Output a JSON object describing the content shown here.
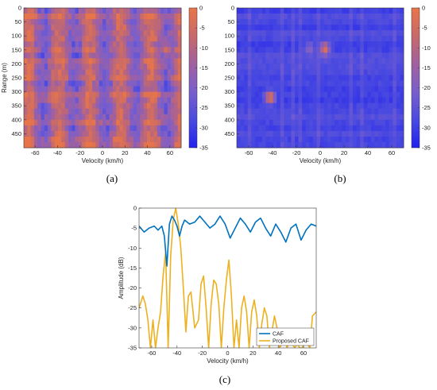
{
  "figure": {
    "captions": [
      "(a)",
      "(b)",
      "(c)"
    ]
  },
  "chart_data": [
    {
      "type": "heatmap",
      "panel": "(a)",
      "xlabel": "Velocity (km/h)",
      "ylabel": "Range (m)",
      "xlim": [
        -70,
        70
      ],
      "ylim": [
        0,
        500
      ],
      "y_reversed": true,
      "xticks": [
        -60,
        -40,
        -20,
        0,
        20,
        40,
        60
      ],
      "yticks": [
        0,
        50,
        100,
        150,
        200,
        250,
        300,
        350,
        400,
        450
      ],
      "colorbar": {
        "range": [
          -35,
          0
        ],
        "ticks": [
          0,
          -5,
          -10,
          -15,
          -20,
          -25,
          -30,
          -35
        ]
      },
      "colormap": [
        "#2222ee",
        "#4a4ae0",
        "#7a5fcc",
        "#a0609f",
        "#c86a6a",
        "#e8754a"
      ],
      "grid": false,
      "peaks": [
        {
          "velocity": -42,
          "range": 145,
          "value": -2
        },
        {
          "velocity": -45,
          "range": 320,
          "value": -3
        },
        {
          "velocity": -10,
          "range": 95,
          "value": -4
        },
        {
          "velocity": 18,
          "range": 250,
          "value": -3
        },
        {
          "velocity": 57,
          "range": 150,
          "value": -4
        }
      ]
    },
    {
      "type": "heatmap",
      "panel": "(b)",
      "xlabel": "Velocity (km/h)",
      "ylabel": "",
      "xlim": [
        -70,
        70
      ],
      "ylim": [
        0,
        500
      ],
      "y_reversed": true,
      "xticks": [
        -60,
        -40,
        -20,
        0,
        20,
        40,
        60
      ],
      "yticks": [
        0,
        50,
        100,
        150,
        200,
        250,
        300,
        350,
        400,
        450
      ],
      "colorbar": {
        "range": [
          -35,
          0
        ],
        "ticks": [
          0,
          -5,
          -10,
          -15,
          -20,
          -25,
          -30,
          -35
        ]
      },
      "colormap": [
        "#2222ee",
        "#4a4ae0",
        "#7a5fcc",
        "#a0609f",
        "#c86a6a",
        "#e8754a"
      ],
      "grid": false,
      "peaks": [
        {
          "velocity": -42,
          "range": 320,
          "value": 0
        },
        {
          "velocity": 4,
          "range": 145,
          "value": -2
        },
        {
          "velocity": -9,
          "range": 145,
          "value": -18
        }
      ]
    },
    {
      "type": "line",
      "panel": "(c)",
      "xlabel": "Velocity (km/h)",
      "ylabel": "Amplitude (dB)",
      "xlim": [
        -70,
        70
      ],
      "ylim": [
        -35,
        0
      ],
      "xticks": [
        -60,
        -40,
        -20,
        0,
        20,
        40,
        60
      ],
      "yticks": [
        0,
        -5,
        -10,
        -15,
        -20,
        -25,
        -30,
        -35
      ],
      "grid": false,
      "legend": "bottom-right",
      "series": [
        {
          "name": "CAF",
          "color": "#0072bd",
          "x": [
            -70,
            -66,
            -62,
            -58,
            -55,
            -52,
            -50,
            -48,
            -46,
            -44,
            -42,
            -40,
            -38,
            -36,
            -34,
            -30,
            -26,
            -22,
            -18,
            -14,
            -10,
            -6,
            -2,
            2,
            6,
            10,
            14,
            18,
            22,
            26,
            30,
            34,
            38,
            42,
            46,
            50,
            54,
            58,
            62,
            66,
            70
          ],
          "y": [
            -4.5,
            -6,
            -5,
            -4.5,
            -5.5,
            -4.5,
            -7,
            -14.5,
            -4,
            -2,
            -3,
            -4.5,
            -7,
            -4.5,
            -3,
            -4,
            -3.5,
            -2,
            -3.5,
            -5,
            -4,
            -2,
            -4,
            -7.5,
            -5,
            -2.5,
            -4,
            -6,
            -3.5,
            -2.5,
            -5,
            -7,
            -4,
            -6,
            -8.5,
            -5,
            -4,
            -8,
            -5.5,
            -4,
            -4.5
          ]
        },
        {
          "name": "Proposed CAF",
          "color": "#edb120",
          "x": [
            -70,
            -67,
            -65,
            -63,
            -61,
            -59,
            -57,
            -55,
            -53,
            -51,
            -49,
            -47,
            -45,
            -43,
            -41,
            -39,
            -37,
            -35,
            -33,
            -31,
            -29,
            -26,
            -23,
            -21,
            -19,
            -17,
            -15,
            -13,
            -11,
            -9,
            -7,
            -5,
            -3,
            -1,
            1,
            3,
            5,
            7,
            9,
            11,
            13,
            15,
            17,
            19,
            21,
            23,
            25,
            27,
            29,
            31,
            33,
            35,
            37,
            39,
            41,
            43,
            45,
            47,
            49,
            51,
            53,
            55,
            57,
            59,
            61,
            63,
            65,
            67,
            70
          ],
          "y": [
            -25,
            -22,
            -24,
            -28,
            -35,
            -28,
            -35,
            -30,
            -26,
            -17,
            -11,
            -35,
            -12,
            -3,
            0,
            -4,
            -10,
            -20,
            -31,
            -22,
            -21,
            -30,
            -28,
            -19,
            -17,
            -25,
            -35,
            -24,
            -18,
            -19,
            -24,
            -35,
            -25,
            -18,
            -13,
            -22,
            -35,
            -28,
            -35,
            -25,
            -22,
            -26,
            -35,
            -26,
            -23,
            -27,
            -35,
            -29,
            -25,
            -27,
            -35,
            -31,
            -27,
            -30,
            -35,
            -34,
            -33,
            -35,
            -33,
            -34,
            -35,
            -34,
            -35,
            -35,
            -33,
            -34,
            -35,
            -27,
            -26
          ]
        }
      ]
    }
  ]
}
